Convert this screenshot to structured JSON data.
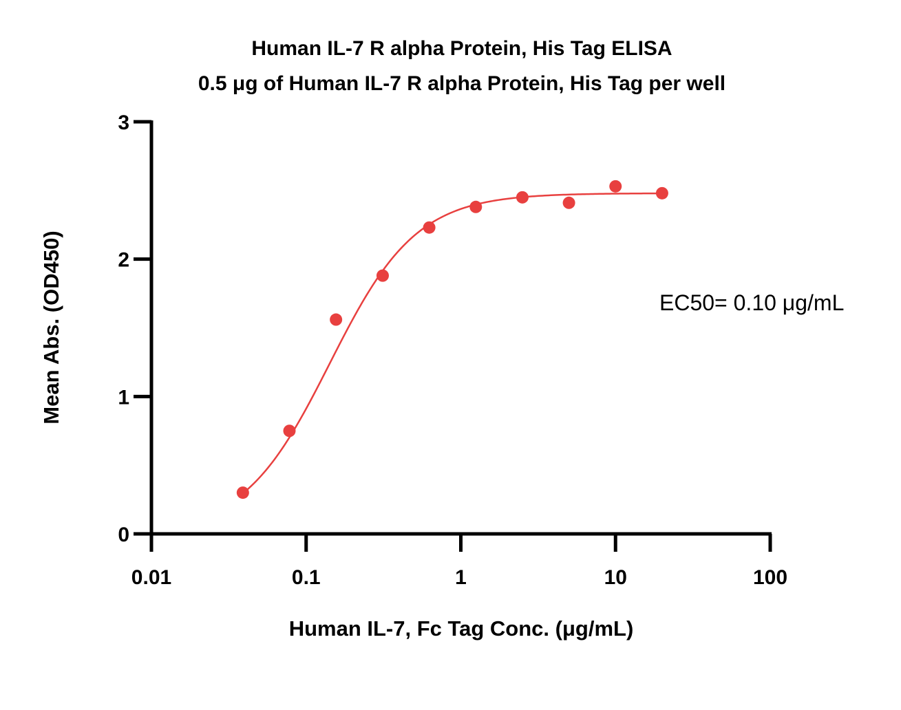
{
  "chart_data": {
    "type": "scatter",
    "title": "Human IL-7 R alpha Protein, His Tag ELISA",
    "subtitle": "0.5 μg of Human IL-7 R alpha Protein, His Tag per well",
    "xlabel": "Human IL-7, Fc Tag Conc. (μg/mL)",
    "ylabel": "Mean Abs. (OD450)",
    "xscale": "log",
    "xlim": [
      0.01,
      100
    ],
    "ylim": [
      0,
      3
    ],
    "x_ticks": [
      0.01,
      0.1,
      1,
      10,
      100
    ],
    "x_tick_labels": [
      "0.01",
      "0.1",
      "1",
      "10",
      "100"
    ],
    "y_ticks": [
      0,
      1,
      2,
      3
    ],
    "y_tick_labels": [
      "0",
      "1",
      "2",
      "3"
    ],
    "grid": false,
    "series": [
      {
        "x": [
          0.039,
          0.078,
          0.156,
          0.3125,
          0.625,
          1.25,
          2.5,
          5,
          10,
          20
        ],
        "y": [
          0.3,
          0.75,
          1.56,
          1.88,
          2.23,
          2.38,
          2.45,
          2.41,
          2.53,
          2.48
        ],
        "color": "#e8403f",
        "fit": "four-parameter logistic"
      }
    ],
    "annotations": [
      {
        "text": "EC50= 0.10 μg/mL"
      }
    ]
  }
}
